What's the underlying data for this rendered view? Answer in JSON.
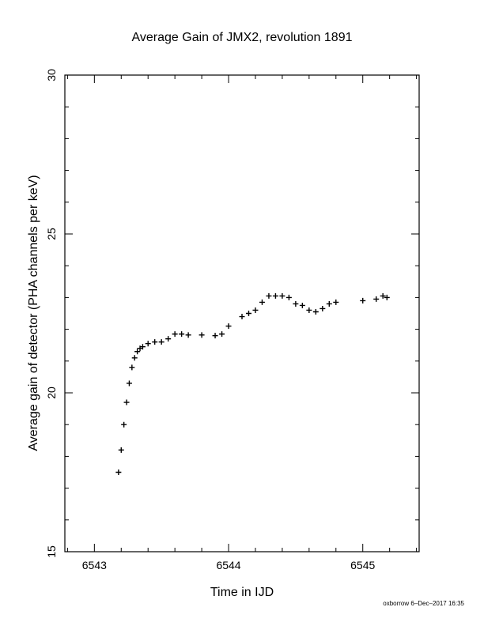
{
  "chart_data": {
    "type": "scatter",
    "marker": "plus",
    "title": "Average Gain of JMX2, revolution 1891",
    "xlabel": "Time in IJD",
    "ylabel": "Average gain of detector (PHA channels per keV)",
    "xlim": [
      6542.78,
      6545.42
    ],
    "ylim": [
      15,
      30
    ],
    "xticks": [
      6543,
      6544,
      6545
    ],
    "xtick_labels": [
      "6543",
      "6544",
      "6545"
    ],
    "yticks": [
      15,
      20,
      25,
      30
    ],
    "ytick_labels": [
      "15",
      "20",
      "25",
      "30"
    ],
    "grid": false,
    "legend": "none",
    "marker_color": "#000000",
    "series": [
      {
        "x": [
          6543.18,
          6543.2,
          6543.22,
          6543.24,
          6543.26,
          6543.28,
          6543.3,
          6543.32,
          6543.34,
          6543.36,
          6543.4,
          6543.45,
          6543.5,
          6543.55,
          6543.6,
          6543.65,
          6543.7,
          6543.8,
          6543.9,
          6543.95,
          6544.0,
          6544.1,
          6544.15,
          6544.2,
          6544.25,
          6544.3,
          6544.35,
          6544.4,
          6544.45,
          6544.5,
          6544.55,
          6544.6,
          6544.65,
          6544.7,
          6544.75,
          6544.8,
          6545.0,
          6545.1,
          6545.15,
          6545.18
        ],
        "y": [
          17.5,
          18.2,
          19.0,
          19.7,
          20.3,
          20.8,
          21.1,
          21.3,
          21.4,
          21.45,
          21.55,
          21.6,
          21.6,
          21.7,
          21.85,
          21.85,
          21.82,
          21.82,
          21.8,
          21.85,
          22.1,
          22.4,
          22.5,
          22.6,
          22.85,
          23.05,
          23.05,
          23.05,
          23.0,
          22.8,
          22.75,
          22.6,
          22.55,
          22.65,
          22.8,
          22.85,
          22.9,
          22.95,
          23.05,
          23.0
        ]
      }
    ]
  },
  "footer": {
    "signature": "oxborrow 6–Dec–2017 16:35"
  }
}
